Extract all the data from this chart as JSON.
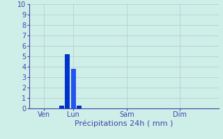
{
  "title": "",
  "xlabel": "Précipitations 24h ( mm )",
  "ylabel": "",
  "ylim": [
    0,
    10
  ],
  "yticks": [
    0,
    1,
    2,
    3,
    4,
    5,
    6,
    7,
    8,
    9,
    10
  ],
  "bar_positions": [
    5,
    6,
    7,
    8,
    9
  ],
  "bar_values": [
    0.25,
    5.2,
    3.8,
    0.25,
    0.0
  ],
  "bar_colors": [
    "#0033cc",
    "#0033cc",
    "#2255ee",
    "#0033cc",
    "#0033cc"
  ],
  "bar_width": 0.85,
  "xtick_positions": [
    2,
    7,
    16,
    25
  ],
  "xtick_labels": [
    "Ven",
    "Lun",
    "Sam",
    "Dim"
  ],
  "xlim": [
    -0.5,
    31.5
  ],
  "n_cols": 32,
  "background_color": "#ceeee8",
  "grid_color": "#b8c8c8",
  "axis_color": "#4444aa",
  "xlabel_fontsize": 8,
  "ytick_fontsize": 7,
  "xtick_fontsize": 7
}
